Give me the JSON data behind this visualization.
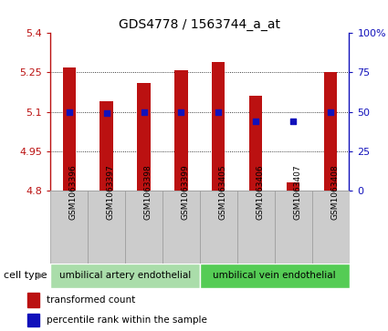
{
  "title": "GDS4778 / 1563744_a_at",
  "samples": [
    "GSM1063396",
    "GSM1063397",
    "GSM1063398",
    "GSM1063399",
    "GSM1063405",
    "GSM1063406",
    "GSM1063407",
    "GSM1063408"
  ],
  "bar_values": [
    5.27,
    5.14,
    5.21,
    5.26,
    5.29,
    5.16,
    4.83,
    5.25
  ],
  "bar_bottom": 4.8,
  "percentile_values": [
    50,
    49,
    50,
    50,
    50,
    44,
    44,
    50
  ],
  "ylim_left": [
    4.8,
    5.4
  ],
  "ylim_right": [
    0,
    100
  ],
  "yticks_left": [
    4.8,
    4.95,
    5.1,
    5.25,
    5.4
  ],
  "yticks_right": [
    0,
    25,
    50,
    75,
    100
  ],
  "ytick_labels_left": [
    "4.8",
    "4.95",
    "5.1",
    "5.25",
    "5.4"
  ],
  "ytick_labels_right": [
    "0",
    "25",
    "50",
    "75",
    "100%"
  ],
  "bar_color": "#bb1111",
  "dot_color": "#1111bb",
  "cell_type_groups": [
    {
      "label": "umbilical artery endothelial",
      "start": 0,
      "end": 4,
      "color": "#aaddaa"
    },
    {
      "label": "umbilical vein endothelial",
      "start": 4,
      "end": 8,
      "color": "#55cc55"
    }
  ],
  "cell_type_label": "cell type",
  "legend_bar_label": "transformed count",
  "legend_dot_label": "percentile rank within the sample",
  "bar_width": 0.35,
  "xticklabel_fontsize": 6.5,
  "ytick_fontsize": 8,
  "title_fontsize": 10,
  "sample_box_color": "#cccccc",
  "sample_box_edge": "#999999"
}
